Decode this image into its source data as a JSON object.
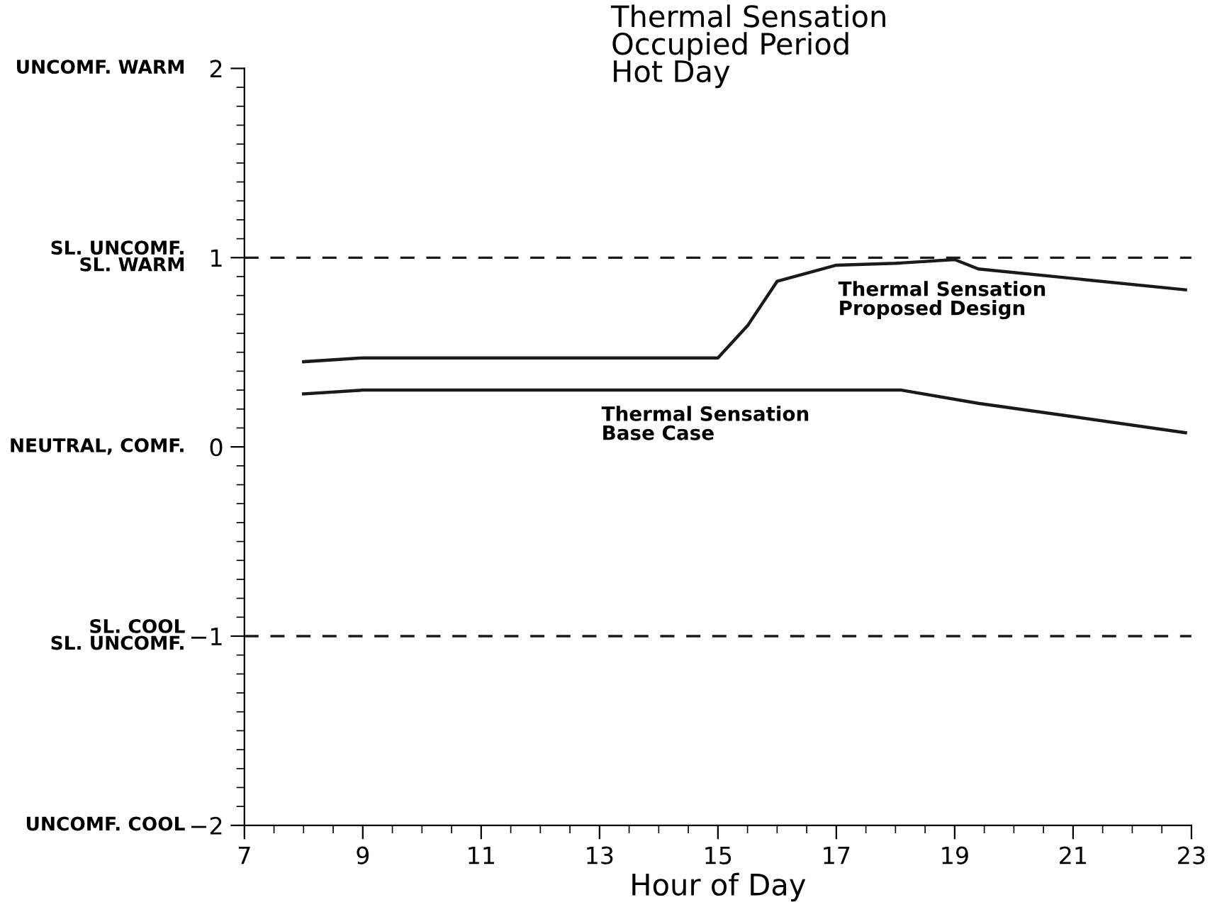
{
  "chart_data": {
    "type": "line",
    "title": "Thermal Sensation\nOccupied Period\nHot Day",
    "xlabel": "Hour of Day",
    "xlim": [
      7,
      23
    ],
    "xticks": [
      7,
      9,
      11,
      13,
      15,
      17,
      19,
      21,
      23
    ],
    "ylim": [
      -2,
      2
    ],
    "yticks": [
      2,
      1,
      0,
      {
        "value": -1,
        "label": "−1"
      },
      {
        "value": -2,
        "label": "−2"
      }
    ],
    "grid": false,
    "legend": false,
    "marker": "none",
    "line_style": "solid",
    "series": [
      {
        "color": "#1a1a1a",
        "x": [
          8,
          9,
          10,
          11,
          12,
          13,
          14,
          15,
          15.5,
          16,
          17,
          18,
          19,
          19.4,
          21,
          22.9
        ],
        "values": [
          0.45,
          0.47,
          0.47,
          0.47,
          0.47,
          0.47,
          0.47,
          0.47,
          0.64,
          0.875,
          0.96,
          0.97,
          0.99,
          0.94,
          0.89,
          0.83
        ]
      },
      {
        "color": "#1a1a1a",
        "x": [
          8,
          9,
          10,
          11,
          12,
          13,
          14,
          15,
          16,
          17,
          18.1,
          19.4,
          21,
          22.9
        ],
        "values": [
          0.28,
          0.3,
          0.3,
          0.3,
          0.3,
          0.3,
          0.3,
          0.3,
          0.3,
          0.3,
          0.3,
          0.23,
          0.16,
          0.075
        ]
      }
    ],
    "ref_lines": [
      {
        "axis": "y",
        "value": 1,
        "color": "#1a1a1a",
        "line_style": "dashed"
      },
      {
        "axis": "y",
        "value": -1,
        "color": "#1a1a1a",
        "line_style": "dashed"
      }
    ],
    "annotations": [
      {
        "text": "Thermal Sensation\nProposed Design",
        "x": 16.9,
        "y": 0.96
      },
      {
        "text": "Thermal Sensation\nBase Case",
        "x": 12.9,
        "y": 0.3
      },
      "UNCOMF. WARM",
      "SL. UNCOMF.\nSL. WARM",
      "NEUTRAL, COMF.",
      "SL. COOL\nSL. UNCOMF.",
      "UNCOMF. COOL"
    ]
  }
}
